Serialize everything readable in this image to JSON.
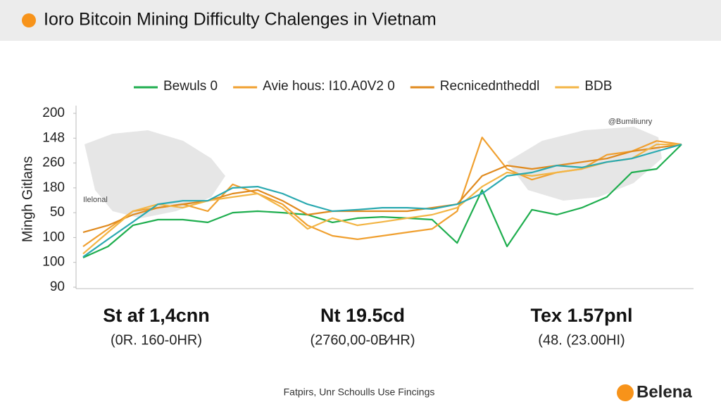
{
  "header": {
    "title": "Ioro Bitcoin Mining Difficulty Chalenges in Vietnam"
  },
  "chart_data": {
    "type": "line",
    "y_label": "Mingh Gitlans",
    "annotations": [
      "@Bumiliunry",
      "Ilelonal"
    ],
    "ylim": [
      0,
      7
    ],
    "yticks": [
      {
        "value": 7,
        "label": "200"
      },
      {
        "value": 6,
        "label": "148"
      },
      {
        "value": 5,
        "label": "260"
      },
      {
        "value": 4,
        "label": "180"
      },
      {
        "value": 3,
        "label": "50"
      },
      {
        "value": 2,
        "label": "100"
      },
      {
        "value": 1,
        "label": "100"
      },
      {
        "value": 0,
        "label": "90"
      }
    ],
    "series": [
      {
        "name": "Bewuls 0",
        "color": "#1fae4f",
        "values": [
          1.19,
          1.64,
          2.49,
          2.72,
          2.72,
          2.61,
          3.0,
          3.06,
          3.0,
          2.92,
          2.61,
          2.78,
          2.83,
          2.78,
          2.72,
          1.78,
          3.91,
          1.64,
          3.12,
          2.92,
          3.2,
          3.63,
          4.62,
          4.76,
          5.75
        ]
      },
      {
        "name": "Avie hous: I10.A0V2 0",
        "color": "#f0a030",
        "values": [
          1.64,
          2.35,
          3.06,
          3.2,
          3.34,
          3.06,
          4.14,
          3.77,
          3.34,
          2.49,
          2.07,
          1.93,
          2.07,
          2.21,
          2.35,
          3.06,
          6.03,
          4.76,
          4.33,
          4.62,
          4.76,
          5.33,
          5.47,
          5.89,
          5.75
        ]
      },
      {
        "name": "Recnicedntheddl",
        "color": "#e08a1e",
        "values": [
          2.21,
          2.49,
          2.92,
          3.2,
          3.34,
          3.48,
          3.77,
          3.91,
          3.48,
          2.92,
          3.06,
          3.06,
          3.06,
          3.06,
          3.2,
          3.34,
          4.48,
          4.9,
          4.76,
          4.9,
          5.04,
          5.18,
          5.47,
          5.61,
          5.75
        ]
      },
      {
        "name": "BDB",
        "color": "#f3b545",
        "values": [
          1.35,
          2.21,
          3.06,
          3.34,
          3.2,
          3.48,
          3.63,
          3.77,
          3.2,
          2.35,
          2.78,
          2.49,
          2.63,
          2.78,
          2.92,
          3.2,
          4.05,
          4.62,
          4.48,
          4.62,
          4.76,
          5.04,
          5.18,
          5.75,
          5.75
        ]
      },
      {
        "color": "#2aa9b0",
        "values": [
          1.22,
          1.93,
          2.63,
          3.34,
          3.48,
          3.48,
          4.0,
          4.05,
          3.77,
          3.34,
          3.06,
          3.12,
          3.2,
          3.2,
          3.15,
          3.34,
          3.77,
          4.48,
          4.62,
          4.9,
          4.82,
          5.04,
          5.18,
          5.47,
          5.75
        ]
      }
    ]
  },
  "stats": [
    {
      "value": "St af 1,4cnn",
      "note": "(0R. 160-0HR)"
    },
    {
      "value": "Nt 19.5cd",
      "note": "(2760,00-0B⁄HR)"
    },
    {
      "value": "Tex 1.57pnl",
      "note": "(48. (23.00HI)"
    }
  ],
  "footer": {
    "source": "Fatpirs, Unr Schoulls Use Fincings",
    "brand": "Belena"
  }
}
